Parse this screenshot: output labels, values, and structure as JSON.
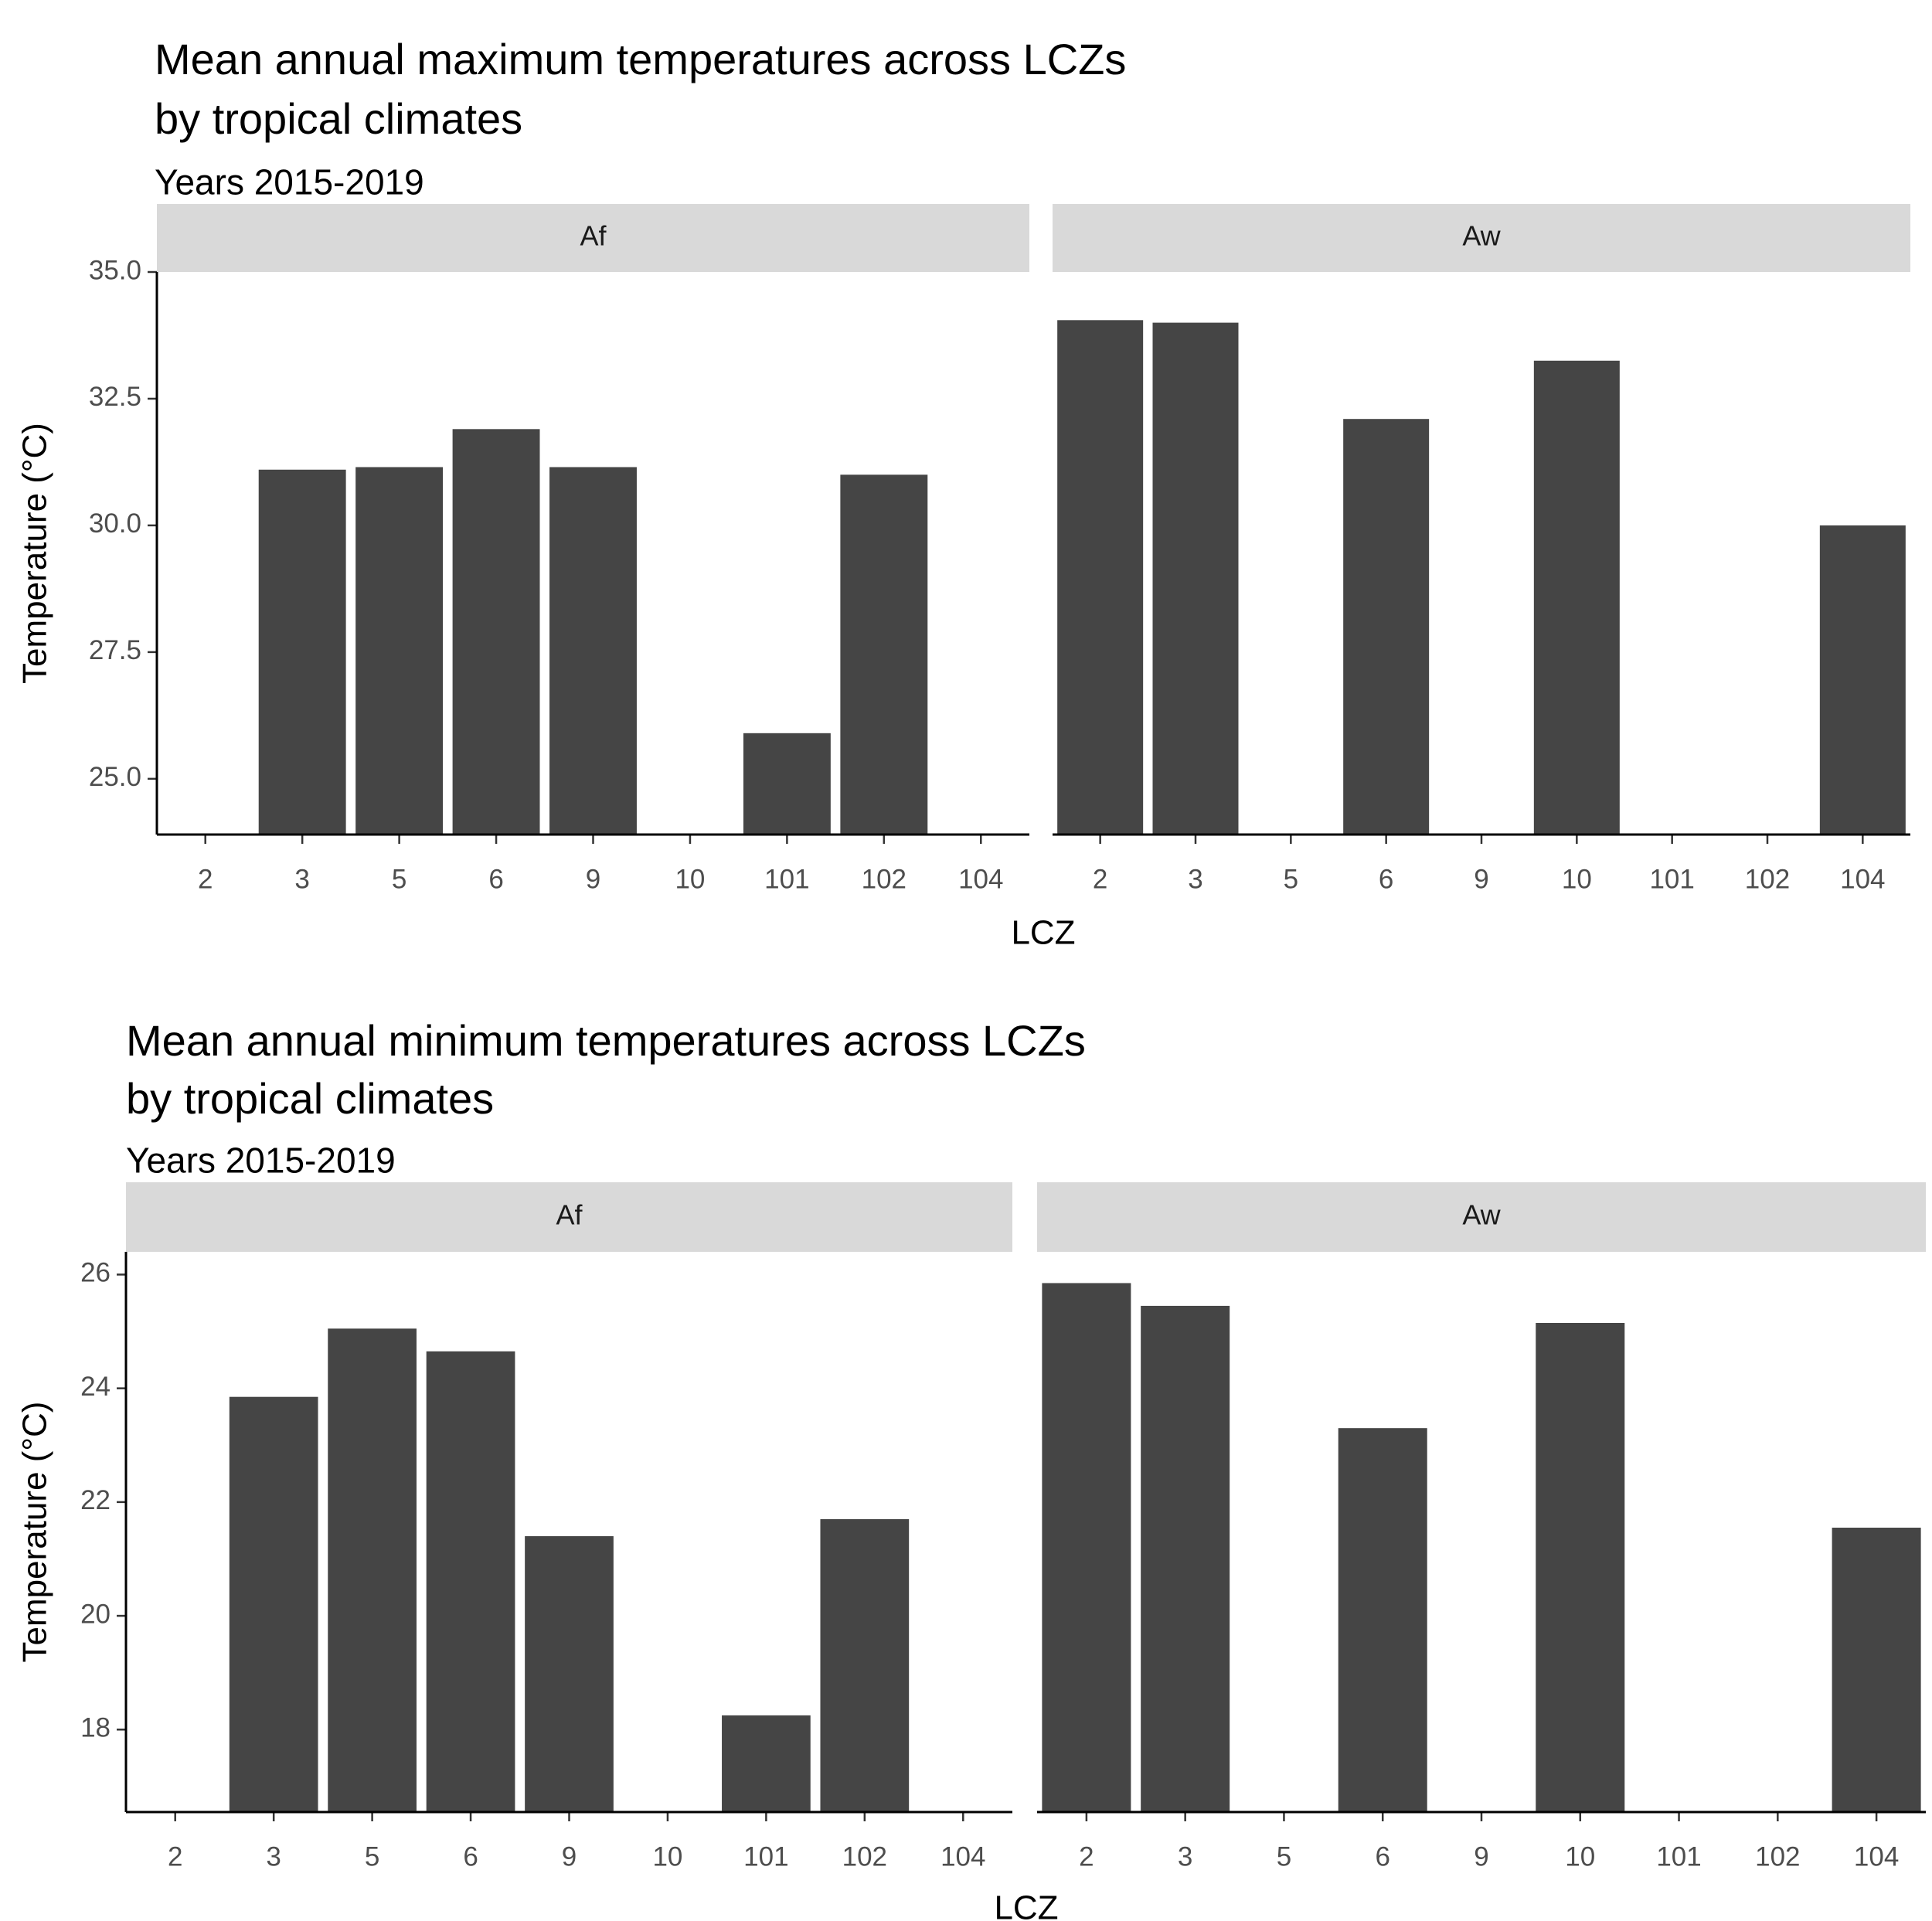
{
  "chart_data": [
    {
      "type": "bar",
      "title": "Mean annual maximum temperatures across LCZs",
      "title_line2": "by tropical climates",
      "subtitle": "Years 2015-2019",
      "xlabel": "LCZ",
      "ylabel": "Temperature (°C)",
      "ylim": [
        23.9,
        35.0
      ],
      "yticks": [
        "25.0",
        "27.5",
        "30.0",
        "32.5",
        "35.0"
      ],
      "categories": [
        "2",
        "3",
        "5",
        "6",
        "9",
        "10",
        "101",
        "102",
        "104"
      ],
      "facets": [
        {
          "name": "Af",
          "values": [
            null,
            31.1,
            31.15,
            31.9,
            31.15,
            null,
            25.9,
            31.0,
            null
          ]
        },
        {
          "name": "Aw",
          "values": [
            34.05,
            34.0,
            null,
            32.1,
            null,
            33.25,
            null,
            null,
            30.0
          ]
        }
      ],
      "bar_color": "#454545",
      "strip_color": "#d9d9d9",
      "grid": false
    },
    {
      "type": "bar",
      "title": "Mean annual minimum temperatures across LCZs",
      "title_line2": "by tropical climates",
      "subtitle": "Years 2015-2019",
      "xlabel": "LCZ",
      "ylabel": "Temperature (°C)",
      "ylim": [
        16.55,
        26.4
      ],
      "yticks": [
        "18",
        "20",
        "22",
        "24",
        "26"
      ],
      "categories": [
        "2",
        "3",
        "5",
        "6",
        "9",
        "10",
        "101",
        "102",
        "104"
      ],
      "facets": [
        {
          "name": "Af",
          "values": [
            null,
            23.85,
            25.05,
            24.65,
            21.4,
            null,
            18.25,
            21.7,
            null
          ]
        },
        {
          "name": "Aw",
          "values": [
            25.85,
            25.45,
            null,
            23.3,
            null,
            25.15,
            null,
            null,
            21.55
          ]
        }
      ],
      "bar_color": "#454545",
      "strip_color": "#d9d9d9",
      "grid": false
    }
  ]
}
